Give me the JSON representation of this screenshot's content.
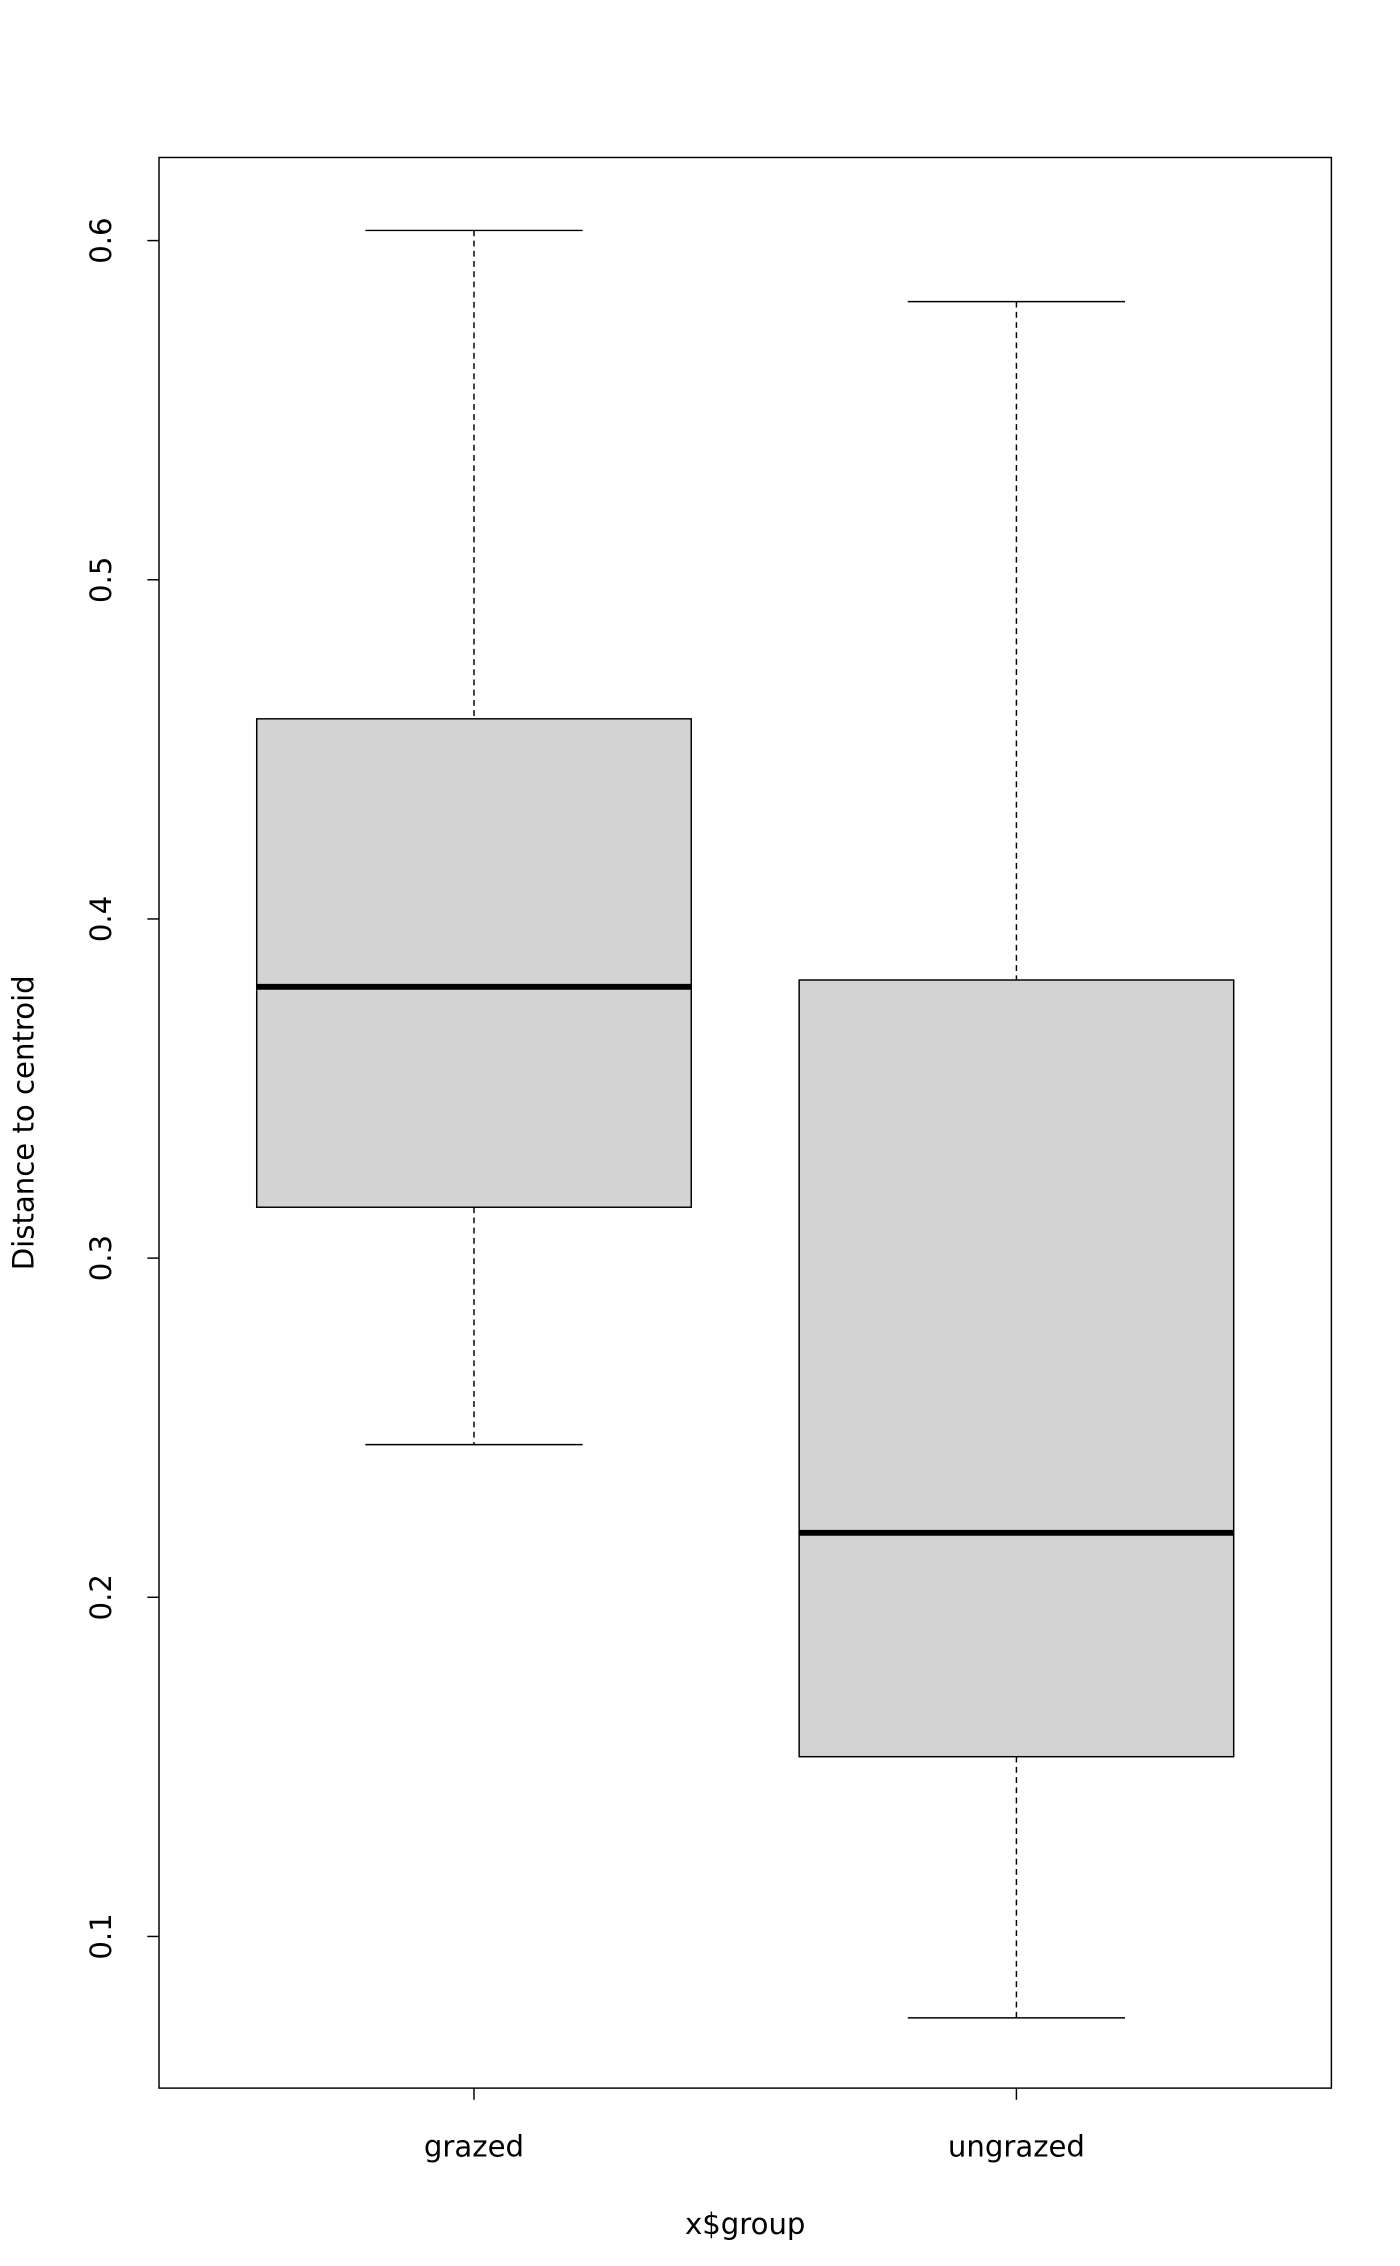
{
  "chart_data": {
    "type": "boxplot",
    "title": "",
    "xlabel": "x$group",
    "ylabel": "Distance to centroid",
    "categories": [
      "grazed",
      "ungrazed"
    ],
    "ylim": [
      0.055,
      0.625
    ],
    "yticks": [
      0.1,
      0.2,
      0.3,
      0.4,
      0.5,
      0.6
    ],
    "ytick_labels": [
      "0.1",
      "0.2",
      "0.3",
      "0.4",
      "0.5",
      "0.6"
    ],
    "grid": false,
    "box_fill": "#d3d3d3",
    "boxes": [
      {
        "category": "grazed",
        "whisker_low": 0.245,
        "q1": 0.315,
        "median": 0.38,
        "q3": 0.459,
        "whisker_high": 0.603
      },
      {
        "category": "ungrazed",
        "whisker_low": 0.076,
        "q1": 0.153,
        "median": 0.219,
        "q3": 0.382,
        "whisker_high": 0.582
      }
    ]
  }
}
